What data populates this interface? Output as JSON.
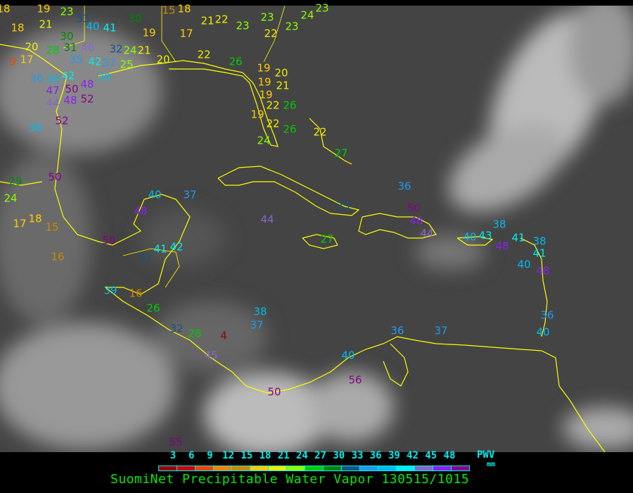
{
  "title": "SuomiNet Precipitable Water Vapor 130515/1015",
  "legend": {
    "unit_label": "PWV",
    "unit": "mm",
    "ticks": [
      "3",
      "6",
      "9",
      "12",
      "15",
      "18",
      "21",
      "24",
      "27",
      "30",
      "33",
      "36",
      "39",
      "42",
      "45",
      "48"
    ],
    "colors": [
      "#990000",
      "#cc0000",
      "#ee4400",
      "#ff8000",
      "#cc8800",
      "#ffcc00",
      "#eeee00",
      "#88ff00",
      "#00cc00",
      "#008800",
      "#115588",
      "#2299ee",
      "#00bbee",
      "#00eeee",
      "#8866cc",
      "#8822ee",
      "#880088"
    ]
  },
  "map": {
    "coastline_color": "#ffff00",
    "station_values": [
      "18",
      "19",
      "23",
      "33",
      "30",
      "15",
      "18",
      "18",
      "21",
      "40",
      "41",
      "19",
      "17",
      "21",
      "22",
      "23",
      "23",
      "22",
      "23",
      "24",
      "23",
      "30",
      "20",
      "28",
      "31",
      "46",
      "32",
      "24",
      "21",
      "20",
      "9",
      "17",
      "35",
      "42",
      "37",
      "25",
      "22",
      "26",
      "19",
      "20",
      "21",
      "19",
      "19",
      "36",
      "39",
      "42",
      "47",
      "50",
      "48",
      "44",
      "48",
      "52",
      "39",
      "52",
      "38",
      "22",
      "26",
      "19",
      "22",
      "26",
      "24",
      "22",
      "27",
      "29",
      "24",
      "50",
      "36",
      "40",
      "37",
      "48",
      "44",
      "33",
      "50",
      "48",
      "44",
      "40",
      "38",
      "43",
      "48",
      "41",
      "38",
      "41",
      "40",
      "48",
      "27",
      "17",
      "18",
      "15",
      "50",
      "16",
      "33",
      "41",
      "42",
      "39",
      "16",
      "26",
      "38",
      "37",
      "32",
      "28",
      "4",
      "36",
      "37",
      "36",
      "40",
      "45",
      "40",
      "56",
      "50",
      "55"
    ]
  }
}
